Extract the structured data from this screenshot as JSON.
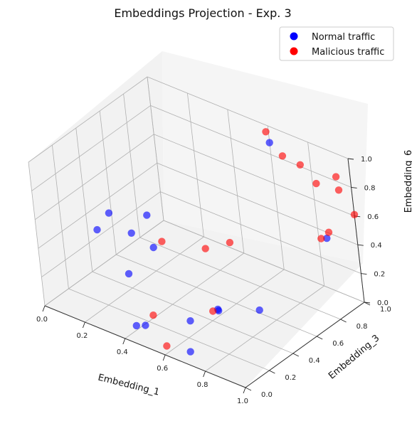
{
  "chart_data": {
    "type": "scatter3d",
    "title": "Embeddings Projection - Exp. 3",
    "xlabel": "Embedding_1",
    "ylabel": "Embedding_3",
    "zlabel": "Embedding_6",
    "xticks": [
      "0.0",
      "0.2",
      "0.4",
      "0.6",
      "0.8",
      "1.0"
    ],
    "yticks": [
      "0.0",
      "0.2",
      "0.4",
      "0.6",
      "0.8",
      "1.0"
    ],
    "zticks": [
      "0.0",
      "0.2",
      "0.4",
      "0.6",
      "0.8",
      "1.0"
    ],
    "xlim": [
      0,
      1
    ],
    "ylim": [
      0,
      1
    ],
    "zlim": [
      0,
      1
    ],
    "grid": true,
    "legend_position": "top-right",
    "series": [
      {
        "name": "Normal traffic",
        "color": "#0000ff",
        "points": [
          {
            "x": 0.02,
            "y": 0.55,
            "z": 0.33
          },
          {
            "x": 0.05,
            "y": 0.4,
            "z": 0.32
          },
          {
            "x": 0.16,
            "y": 0.5,
            "z": 0.3
          },
          {
            "x": 0.15,
            "y": 0.65,
            "z": 0.33
          },
          {
            "x": 0.28,
            "y": 0.48,
            "z": 0.28
          },
          {
            "x": 0.29,
            "y": 0.25,
            "z": 0.24
          },
          {
            "x": 0.4,
            "y": 0.1,
            "z": 0.03
          },
          {
            "x": 0.42,
            "y": 0.14,
            "z": 0.02
          },
          {
            "x": 0.55,
            "y": 0.3,
            "z": 0.03
          },
          {
            "x": 0.68,
            "y": 0.08,
            "z": 0.02
          },
          {
            "x": 0.65,
            "y": 0.38,
            "z": 0.11
          },
          {
            "x": 0.6,
            "y": 0.45,
            "z": 0.05
          },
          {
            "x": 0.75,
            "y": 0.55,
            "z": 0.07
          },
          {
            "x": 0.68,
            "y": 0.88,
            "z": 1.0
          },
          {
            "x": 0.99,
            "y": 0.78,
            "z": 0.57
          }
        ]
      },
      {
        "name": "Malicious traffic",
        "color": "#ff0000",
        "points": [
          {
            "x": 0.28,
            "y": 0.55,
            "z": 0.28
          },
          {
            "x": 0.45,
            "y": 0.63,
            "z": 0.28
          },
          {
            "x": 0.48,
            "y": 0.78,
            "z": 0.25
          },
          {
            "x": 0.4,
            "y": 0.24,
            "z": 0.02
          },
          {
            "x": 0.62,
            "y": 0.38,
            "z": 0.09
          },
          {
            "x": 0.6,
            "y": 0.02,
            "z": 0.05
          },
          {
            "x": 0.62,
            "y": 0.95,
            "z": 1.0
          },
          {
            "x": 0.78,
            "y": 0.82,
            "z": 1.0
          },
          {
            "x": 0.8,
            "y": 0.92,
            "z": 0.89
          },
          {
            "x": 0.92,
            "y": 0.85,
            "z": 0.87
          },
          {
            "x": 0.96,
            "y": 0.95,
            "z": 0.88
          },
          {
            "x": 1.0,
            "y": 0.9,
            "z": 0.84
          },
          {
            "x": 0.98,
            "y": 0.75,
            "z": 0.58
          },
          {
            "x": 0.99,
            "y": 0.8,
            "z": 0.6
          },
          {
            "x": 1.0,
            "y": 1.0,
            "z": 0.61
          }
        ]
      }
    ]
  }
}
